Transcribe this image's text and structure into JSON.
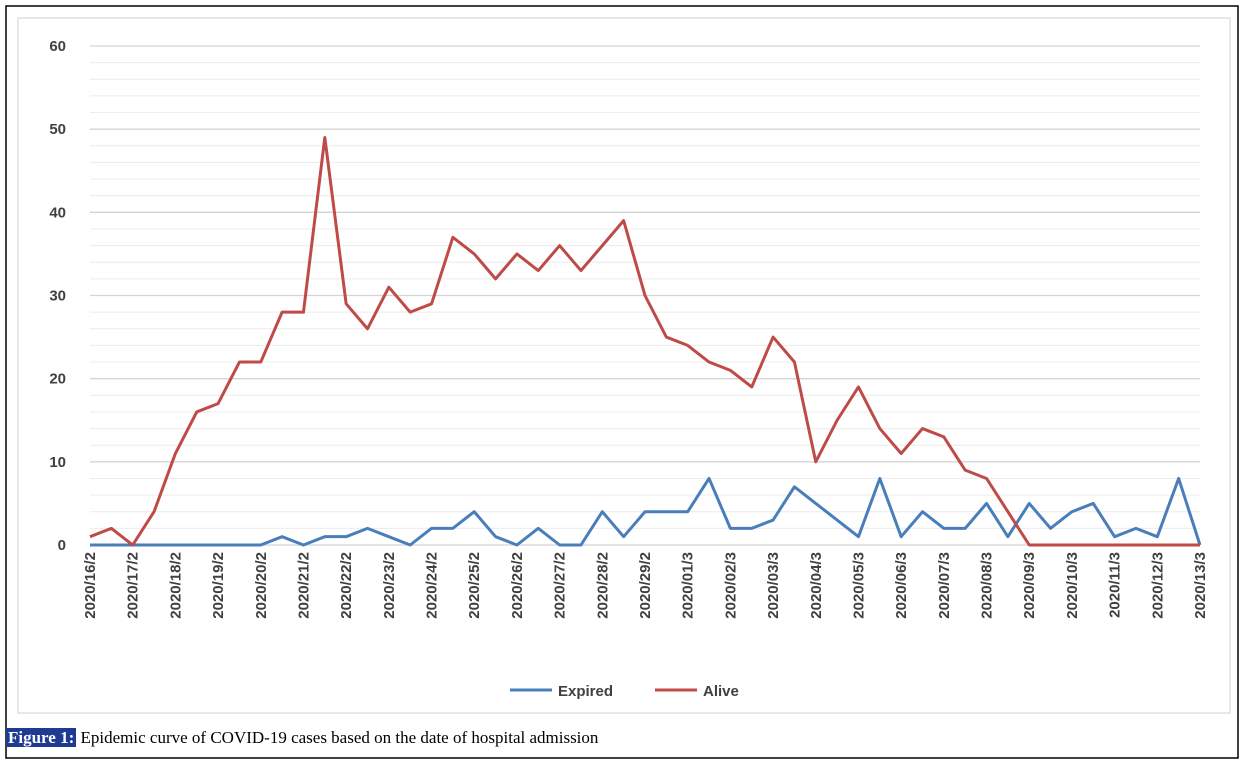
{
  "chart_data": {
    "type": "line",
    "categories": [
      "2020/16/2",
      null,
      "2020/17/2",
      null,
      "2020/18/2",
      null,
      "2020/19/2",
      null,
      "2020/20/2",
      null,
      "2020/21/2",
      null,
      "2020/22/2",
      null,
      "2020/23/2",
      null,
      "2020/24/2",
      null,
      "2020/25/2",
      null,
      "2020/26/2",
      null,
      "2020/27/2",
      null,
      "2020/28/2",
      null,
      "2020/29/2",
      null,
      "2020/01/3",
      null,
      "2020/02/3",
      null,
      "2020/03/3",
      null,
      "2020/04/3",
      null,
      "2020/05/3",
      null,
      "2020/06/3",
      null,
      "2020/07/3",
      null,
      "2020/08/3",
      null,
      "2020/09/3",
      null,
      "2020/10/3",
      null,
      "2020/11/3",
      null,
      "2020/12/3",
      null,
      "2020/13/3"
    ],
    "series": [
      {
        "name": "Expired",
        "color": "#4a7ebb",
        "values": [
          0,
          0,
          0,
          0,
          0,
          0,
          0,
          0,
          0,
          1,
          0,
          1,
          1,
          2,
          1,
          0,
          2,
          2,
          4,
          1,
          0,
          2,
          0,
          0,
          4,
          1,
          4,
          4,
          4,
          8,
          2,
          2,
          3,
          7,
          5,
          3,
          1,
          8,
          1,
          4,
          2,
          2,
          5,
          1,
          5,
          2,
          4,
          5,
          1,
          2,
          1,
          8,
          0
        ]
      },
      {
        "name": "Alive",
        "color": "#be4b48",
        "values": [
          1,
          2,
          0,
          4,
          11,
          16,
          17,
          22,
          22,
          28,
          28,
          49,
          29,
          26,
          31,
          28,
          29,
          37,
          35,
          32,
          35,
          33,
          36,
          33,
          36,
          39,
          30,
          25,
          24,
          22,
          21,
          19,
          25,
          22,
          10,
          15,
          19,
          14,
          11,
          14,
          13,
          9,
          8,
          4,
          0,
          0,
          0,
          0,
          0,
          0,
          0,
          0,
          0
        ]
      }
    ],
    "ylim": [
      0,
      60
    ],
    "yticks": [
      0,
      10,
      20,
      30,
      40,
      50,
      60
    ],
    "minor_yticks": [
      2,
      4,
      6,
      8,
      12,
      14,
      16,
      18,
      22,
      24,
      26,
      28,
      32,
      34,
      36,
      38,
      42,
      44,
      46,
      48,
      52,
      54,
      56,
      58
    ],
    "grid": true,
    "legend": "bottom",
    "caption_label": "Figure 1:",
    "caption": "Epidemic curve of COVID-19 cases based on the date of hospital admission"
  }
}
